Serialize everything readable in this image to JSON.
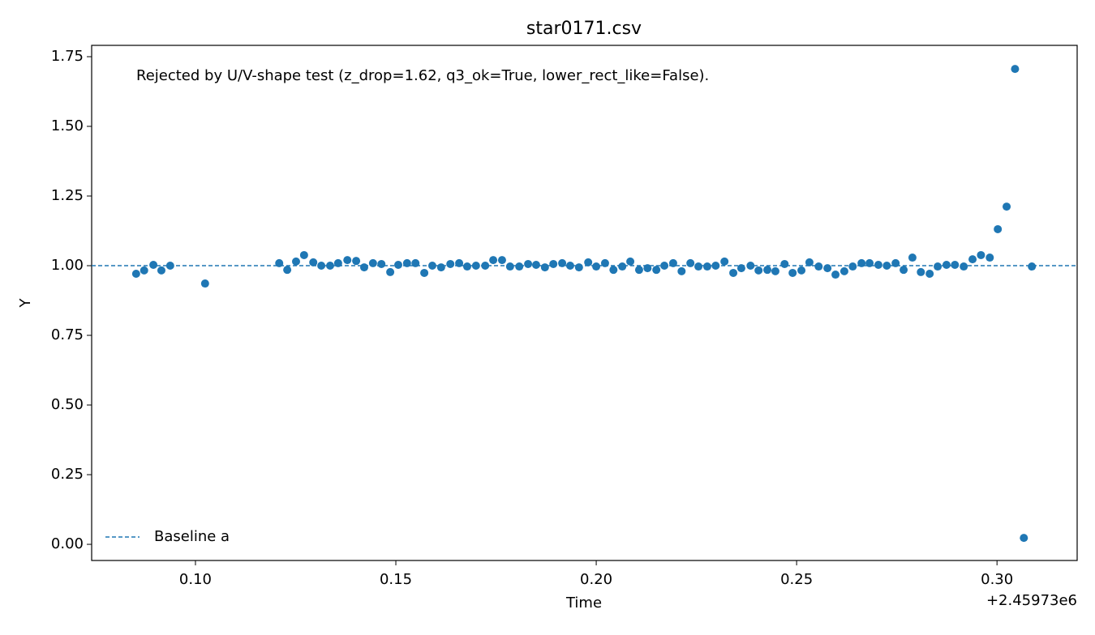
{
  "chart_data": {
    "type": "scatter",
    "title": "star0171.csv",
    "x_label": "Time",
    "y_label": "Y",
    "x_offset_label": "+2.45973e6",
    "annotation": "Rejected by U/V-shape test (z_drop=1.62, q3_ok=True, lower_rect_like=False).",
    "xlim": [
      0.0741,
      0.32
    ],
    "ylim": [
      -0.058,
      1.7907
    ],
    "xticks": [
      {
        "value": 0.1,
        "label": "0.10"
      },
      {
        "value": 0.15,
        "label": "0.15"
      },
      {
        "value": 0.2,
        "label": "0.20"
      },
      {
        "value": 0.25,
        "label": "0.25"
      },
      {
        "value": 0.3,
        "label": "0.30"
      }
    ],
    "yticks": [
      {
        "value": 0,
        "label": "0.00"
      },
      {
        "value": 0.25,
        "label": "0.25"
      },
      {
        "value": 0.5,
        "label": "0.50"
      },
      {
        "value": 0.75,
        "label": "0.75"
      },
      {
        "value": 1,
        "label": "1.00"
      },
      {
        "value": 1.25,
        "label": "1.25"
      },
      {
        "value": 1.5,
        "label": "1.50"
      },
      {
        "value": 1.75,
        "label": "1.75"
      }
    ],
    "legend": "lower left",
    "baseline": {
      "name": "Baseline a",
      "value": 1,
      "color": "#1f77b4"
    },
    "series": [
      {
        "color": "#1f77b4",
        "x": [
          0.0852,
          0.0872,
          0.0895,
          0.0915,
          0.0937,
          0.1024,
          0.1209,
          0.1229,
          0.1251,
          0.1271,
          0.1294,
          0.1314,
          0.1336,
          0.1356,
          0.1379,
          0.1401,
          0.1421,
          0.1443,
          0.1464,
          0.1486,
          0.1506,
          0.1528,
          0.1549,
          0.1571,
          0.1591,
          0.1613,
          0.1636,
          0.1658,
          0.1678,
          0.17,
          0.1723,
          0.1743,
          0.1765,
          0.1785,
          0.1808,
          0.183,
          0.185,
          0.1872,
          0.1893,
          0.1915,
          0.1935,
          0.1957,
          0.198,
          0.2,
          0.2022,
          0.2043,
          0.2065,
          0.2085,
          0.2107,
          0.2128,
          0.215,
          0.217,
          0.2192,
          0.2213,
          0.2235,
          0.2255,
          0.2277,
          0.2298,
          0.232,
          0.2342,
          0.2362,
          0.2385,
          0.2405,
          0.2427,
          0.2447,
          0.247,
          0.249,
          0.2512,
          0.2532,
          0.2555,
          0.2577,
          0.2597,
          0.2619,
          0.264,
          0.2662,
          0.2682,
          0.2704,
          0.2725,
          0.2747,
          0.2767,
          0.2789,
          0.281,
          0.2832,
          0.2852,
          0.2874,
          0.2895,
          0.2917,
          0.2939,
          0.296,
          0.2982,
          0.3002,
          0.3024,
          0.3045,
          0.3067,
          0.3087
        ],
        "values": [
          0.971,
          0.983,
          1.003,
          0.983,
          1.0,
          0.936,
          1.009,
          0.985,
          1.015,
          1.038,
          1.012,
          1.0,
          1.0,
          1.009,
          1.02,
          1.017,
          0.994,
          1.009,
          1.006,
          0.977,
          1.003,
          1.009,
          1.009,
          0.974,
          1.0,
          0.994,
          1.006,
          1.009,
          0.997,
          1.0,
          1.0,
          1.02,
          1.02,
          0.997,
          0.997,
          1.006,
          1.003,
          0.994,
          1.006,
          1.009,
          1.0,
          0.994,
          1.012,
          0.997,
          1.009,
          0.985,
          0.997,
          1.015,
          0.985,
          0.991,
          0.985,
          1.0,
          1.009,
          0.98,
          1.009,
          0.997,
          0.997,
          1.0,
          1.015,
          0.974,
          0.991,
          1.0,
          0.983,
          0.985,
          0.98,
          1.006,
          0.974,
          0.983,
          1.012,
          0.997,
          0.991,
          0.968,
          0.98,
          0.997,
          1.009,
          1.009,
          1.003,
          1.0,
          1.009,
          0.985,
          1.029,
          0.977,
          0.971,
          0.997,
          1.003,
          1.003,
          0.997,
          1.023,
          1.038,
          1.029,
          1.131,
          1.212,
          1.706,
          0.023,
          0.997
        ]
      }
    ]
  }
}
